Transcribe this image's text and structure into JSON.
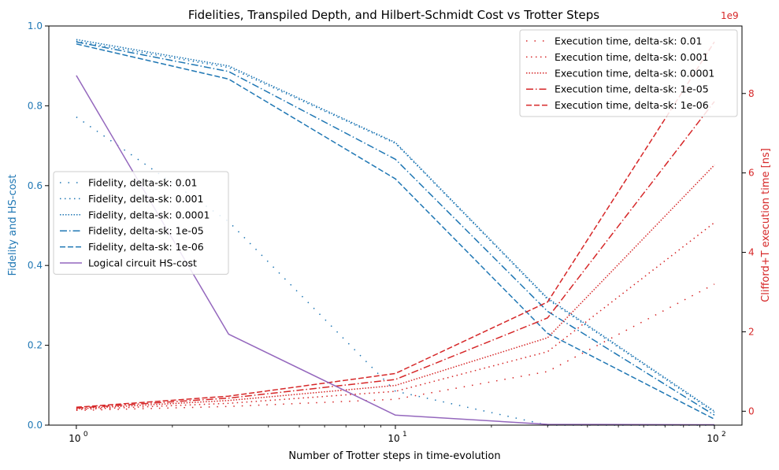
{
  "chart_data": {
    "type": "line",
    "title": "Fidelities, Transpiled Depth, and Hilbert-Schmidt Cost vs Trotter Steps",
    "xlabel": "Number of Trotter steps in time-evolution",
    "ylabel_left": "Fidelity and HS-cost",
    "ylabel_right": "Clifford+T execution time [ns]",
    "right_axis_multiplier": "1e9",
    "x_scale": "log",
    "x_ticks": [
      1,
      10,
      100
    ],
    "x_tick_labels": [
      "10",
      "10",
      "10"
    ],
    "x_tick_exponents": [
      "0",
      "1",
      "2"
    ],
    "xlim": [
      0.82,
      122
    ],
    "ylim_left": [
      0,
      1
    ],
    "ylim_right": [
      -0.35,
      9.7
    ],
    "y_left_ticks": [
      "0.0",
      "0.2",
      "0.4",
      "0.6",
      "0.8",
      "1.0"
    ],
    "y_right_ticks": [
      "0",
      "2",
      "4",
      "6",
      "8"
    ],
    "colors": {
      "fidelity": "#1f77b4",
      "time": "#d62728",
      "hs": "#9467bd",
      "left_axis_text": "#1f77b4",
      "right_axis_text": "#d62728"
    },
    "x": [
      1,
      3,
      10,
      30,
      100
    ],
    "fidelity_series": [
      {
        "name": "Fidelity, delta-sk: 0.01",
        "style": "loose-dot",
        "values": [
          0.772,
          0.51,
          0.085,
          0.0,
          0.0
        ]
      },
      {
        "name": "Fidelity, delta-sk: 0.001",
        "style": "dot",
        "values": [
          0.962,
          0.896,
          0.706,
          0.315,
          0.032
        ]
      },
      {
        "name": "Fidelity, delta-sk: 0.0001",
        "style": "dense-dot",
        "values": [
          0.966,
          0.9,
          0.708,
          0.318,
          0.035
        ]
      },
      {
        "name": "Fidelity, delta-sk: 1e-05",
        "style": "dash-dot",
        "values": [
          0.96,
          0.886,
          0.666,
          0.285,
          0.025
        ]
      },
      {
        "name": "Fidelity, delta-sk: 1e-06",
        "style": "dash",
        "values": [
          0.955,
          0.867,
          0.617,
          0.23,
          0.015
        ]
      }
    ],
    "hs_series": {
      "name": "Logical circuit HS-cost",
      "values": [
        0.876,
        0.228,
        0.025,
        0.002,
        0.001
      ]
    },
    "time_series": [
      {
        "name": "Execution time, delta-sk: 0.01",
        "style": "loose-dot",
        "values": [
          0.02,
          0.12,
          0.3,
          1.0,
          3.2
        ]
      },
      {
        "name": "Execution time, delta-sk: 0.001",
        "style": "dot",
        "values": [
          0.04,
          0.2,
          0.5,
          1.5,
          4.75
        ]
      },
      {
        "name": "Execution time, delta-sk: 0.0001",
        "style": "dense-dot",
        "values": [
          0.06,
          0.27,
          0.65,
          1.85,
          6.2
        ]
      },
      {
        "name": "Execution time, delta-sk: 1e-05",
        "style": "dash-dot",
        "values": [
          0.08,
          0.33,
          0.8,
          2.35,
          7.8
        ]
      },
      {
        "name": "Execution time, delta-sk: 1e-06",
        "style": "dash",
        "values": [
          0.1,
          0.38,
          0.95,
          2.75,
          9.3
        ]
      }
    ],
    "legend_left_placement": "center-left",
    "legend_right_placement": "top-right",
    "grid": false
  }
}
